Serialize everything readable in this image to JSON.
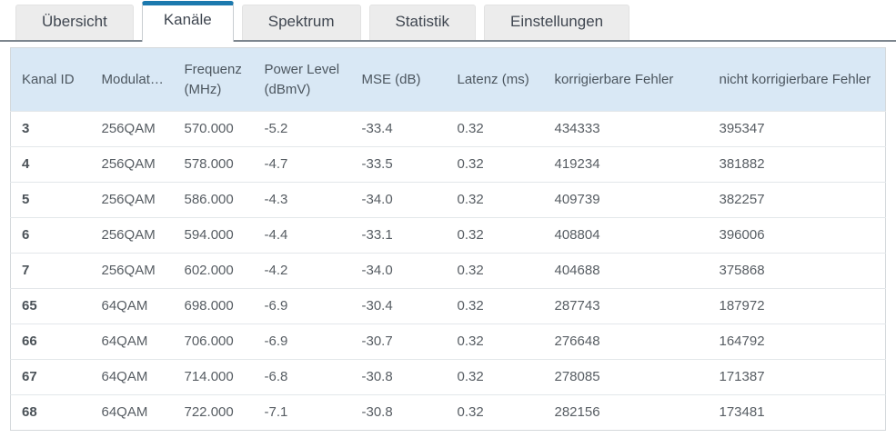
{
  "colors": {
    "accent": "#1b79ae",
    "table_header_bg": "#d9e8f5"
  },
  "tabs": [
    {
      "id": "uebersicht",
      "label": "Übersicht",
      "active": false
    },
    {
      "id": "kanaele",
      "label": "Kanäle",
      "active": true
    },
    {
      "id": "spektrum",
      "label": "Spektrum",
      "active": false
    },
    {
      "id": "statistik",
      "label": "Statistik",
      "active": false
    },
    {
      "id": "einstellungen",
      "label": "Einstellungen",
      "active": false
    }
  ],
  "table": {
    "columns": [
      {
        "key": "kanal-id",
        "label": "Kanal ID"
      },
      {
        "key": "modulation",
        "label": "Modulat…"
      },
      {
        "key": "frequenz",
        "label": "Frequenz (MHz)"
      },
      {
        "key": "power-level",
        "label": "Power Level (dBmV)"
      },
      {
        "key": "mse",
        "label": "MSE (dB)"
      },
      {
        "key": "latenz",
        "label": "Latenz (ms)"
      },
      {
        "key": "korrigierbare-fehler",
        "label": "korrigierbare Fehler"
      },
      {
        "key": "nicht-korrigierbare-fehler",
        "label": "nicht korrigierbare Fehler"
      }
    ],
    "rows": [
      [
        "3",
        "256QAM",
        "570.000",
        "-5.2",
        "-33.4",
        "0.32",
        "434333",
        "395347"
      ],
      [
        "4",
        "256QAM",
        "578.000",
        "-4.7",
        "-33.5",
        "0.32",
        "419234",
        "381882"
      ],
      [
        "5",
        "256QAM",
        "586.000",
        "-4.3",
        "-34.0",
        "0.32",
        "409739",
        "382257"
      ],
      [
        "6",
        "256QAM",
        "594.000",
        "-4.4",
        "-33.1",
        "0.32",
        "408804",
        "396006"
      ],
      [
        "7",
        "256QAM",
        "602.000",
        "-4.2",
        "-34.0",
        "0.32",
        "404688",
        "375868"
      ],
      [
        "65",
        "64QAM",
        "698.000",
        "-6.9",
        "-30.4",
        "0.32",
        "287743",
        "187972"
      ],
      [
        "66",
        "64QAM",
        "706.000",
        "-6.9",
        "-30.7",
        "0.32",
        "276648",
        "164792"
      ],
      [
        "67",
        "64QAM",
        "714.000",
        "-6.8",
        "-30.8",
        "0.32",
        "278085",
        "171387"
      ],
      [
        "68",
        "64QAM",
        "722.000",
        "-7.1",
        "-30.8",
        "0.32",
        "282156",
        "173481"
      ]
    ]
  }
}
